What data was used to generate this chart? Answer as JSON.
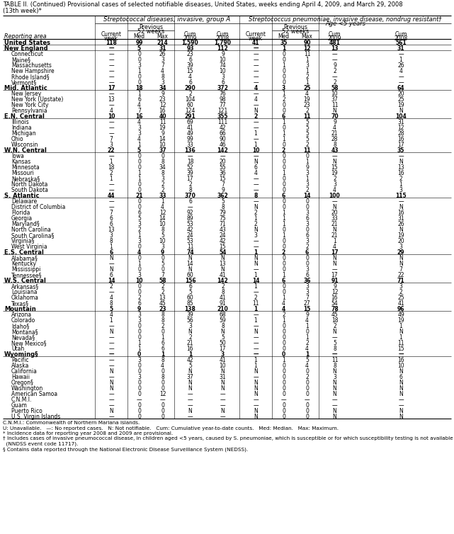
{
  "title_line1": "TABLE II. (Continued) Provisional cases of selected notifiable diseases, United States, weeks ending April 4, 2009, and March 29, 2008",
  "title_line2": "(13th week)*",
  "col_group1": "Streptococcal diseases, invasive, group A",
  "col_group2": "Streptococcus pneumoniae, invasive disease, nondrug resistant†\nAge <5 years",
  "reporting_area_label": "Reporting area",
  "rows": [
    [
      "United States",
      "118",
      "99",
      "214",
      "1,590",
      "1,790",
      "41",
      "35",
      "90",
      "481",
      "561"
    ],
    [
      "New England",
      "—",
      "5",
      "31",
      "93",
      "112",
      "—",
      "1",
      "12",
      "13",
      "31"
    ],
    [
      "Connecticut",
      "—",
      "0",
      "26",
      "23",
      "9",
      "—",
      "0",
      "11",
      "—",
      "—"
    ],
    [
      "Maine§",
      "—",
      "0",
      "3",
      "6",
      "10",
      "—",
      "0",
      "1",
      "—",
      "1"
    ],
    [
      "Massachusetts",
      "—",
      "3",
      "7",
      "39",
      "74",
      "—",
      "1",
      "3",
      "9",
      "26"
    ],
    [
      "New Hampshire",
      "—",
      "1",
      "4",
      "15",
      "10",
      "—",
      "0",
      "1",
      "2",
      "4"
    ],
    [
      "Rhode Island§",
      "—",
      "0",
      "8",
      "4",
      "3",
      "—",
      "0",
      "2",
      "—",
      "—"
    ],
    [
      "Vermont§",
      "—",
      "0",
      "3",
      "6",
      "6",
      "—",
      "0",
      "1",
      "2",
      "—"
    ],
    [
      "Mid. Atlantic",
      "17",
      "18",
      "34",
      "290",
      "372",
      "4",
      "3",
      "25",
      "58",
      "64"
    ],
    [
      "New Jersey",
      "—",
      "1",
      "9",
      "2",
      "76",
      "—",
      "1",
      "4",
      "10",
      "20"
    ],
    [
      "New York (Upstate)",
      "13",
      "6",
      "23",
      "104",
      "98",
      "4",
      "2",
      "19",
      "37",
      "25"
    ],
    [
      "New York City",
      "—",
      "4",
      "12",
      "60",
      "77",
      "—",
      "0",
      "23",
      "11",
      "19"
    ],
    [
      "Pennsylvania",
      "4",
      "7",
      "16",
      "124",
      "121",
      "N",
      "0",
      "2",
      "N",
      "N"
    ],
    [
      "E.N. Central",
      "10",
      "16",
      "40",
      "291",
      "355",
      "2",
      "6",
      "11",
      "70",
      "104"
    ],
    [
      "Illinois",
      "—",
      "4",
      "11",
      "69",
      "111",
      "—",
      "1",
      "5",
      "9",
      "31"
    ],
    [
      "Indiana",
      "—",
      "3",
      "19",
      "41",
      "42",
      "—",
      "0",
      "5",
      "4",
      "12"
    ],
    [
      "Michigan",
      "—",
      "3",
      "9",
      "49",
      "66",
      "1",
      "1",
      "5",
      "21",
      "28"
    ],
    [
      "Ohio",
      "7",
      "4",
      "14",
      "99",
      "90",
      "—",
      "1",
      "5",
      "28",
      "16"
    ],
    [
      "Wisconsin",
      "3",
      "1",
      "10",
      "33",
      "46",
      "1",
      "0",
      "2",
      "8",
      "17"
    ],
    [
      "W.N. Central",
      "22",
      "5",
      "37",
      "136",
      "142",
      "10",
      "2",
      "11",
      "43",
      "35"
    ],
    [
      "Iowa",
      "—",
      "0",
      "0",
      "—",
      "—",
      "—",
      "0",
      "0",
      "—",
      "—"
    ],
    [
      "Kansas",
      "1",
      "0",
      "8",
      "18",
      "20",
      "N",
      "0",
      "1",
      "N",
      "N"
    ],
    [
      "Minnesota",
      "18",
      "0",
      "34",
      "52",
      "55",
      "6",
      "0",
      "9",
      "15",
      "13"
    ],
    [
      "Missouri",
      "2",
      "1",
      "8",
      "39",
      "36",
      "4",
      "1",
      "3",
      "19",
      "16"
    ],
    [
      "Nebraska§",
      "1",
      "1",
      "3",
      "17",
      "15",
      "—",
      "0",
      "1",
      "2",
      "2"
    ],
    [
      "North Dakota",
      "—",
      "0",
      "2",
      "2",
      "7",
      "—",
      "0",
      "3",
      "3",
      "1"
    ],
    [
      "South Dakota",
      "—",
      "0",
      "2",
      "8",
      "9",
      "—",
      "0",
      "2",
      "4",
      "3"
    ],
    [
      "S. Atlantic",
      "44",
      "21",
      "33",
      "370",
      "362",
      "8",
      "6",
      "14",
      "100",
      "115"
    ],
    [
      "Delaware",
      "—",
      "0",
      "1",
      "6",
      "5",
      "—",
      "0",
      "0",
      "—",
      "—"
    ],
    [
      "District of Columbia",
      "—",
      "0",
      "4",
      "—",
      "8",
      "N",
      "0",
      "0",
      "N",
      "N"
    ],
    [
      "Florida",
      "7",
      "6",
      "12",
      "92",
      "79",
      "2",
      "1",
      "3",
      "20",
      "16"
    ],
    [
      "Georgia",
      "6",
      "5",
      "14",
      "89",
      "75",
      "1",
      "1",
      "6",
      "33",
      "31"
    ],
    [
      "Maryland§",
      "6",
      "3",
      "10",
      "53",
      "71",
      "2",
      "1",
      "3",
      "21",
      "26"
    ],
    [
      "North Carolina",
      "13",
      "2",
      "8",
      "42",
      "43",
      "N",
      "0",
      "0",
      "N",
      "N"
    ],
    [
      "South Carolina§",
      "3",
      "1",
      "5",
      "24",
      "24",
      "3",
      "1",
      "6",
      "21",
      "19"
    ],
    [
      "Virginia§",
      "8",
      "3",
      "10",
      "53",
      "42",
      "—",
      "0",
      "3",
      "1",
      "20"
    ],
    [
      "West Virginia",
      "1",
      "0",
      "3",
      "11",
      "15",
      "—",
      "0",
      "2",
      "4",
      "3"
    ],
    [
      "E.S. Central",
      "6",
      "4",
      "9",
      "74",
      "54",
      "1",
      "2",
      "6",
      "17",
      "29"
    ],
    [
      "Alabama§",
      "N",
      "0",
      "0",
      "N",
      "N",
      "N",
      "0",
      "0",
      "N",
      "N"
    ],
    [
      "Kentucky",
      "—",
      "1",
      "5",
      "14",
      "13",
      "N",
      "0",
      "0",
      "N",
      "N"
    ],
    [
      "Mississippi",
      "N",
      "0",
      "0",
      "N",
      "N",
      "—",
      "0",
      "3",
      "—",
      "7"
    ],
    [
      "Tennessee§",
      "6",
      "3",
      "7",
      "60",
      "41",
      "1",
      "1",
      "6",
      "17",
      "22"
    ],
    [
      "W.S. Central",
      "14",
      "10",
      "58",
      "156",
      "142",
      "14",
      "6",
      "36",
      "91",
      "71"
    ],
    [
      "Arkansas§",
      "2",
      "0",
      "2",
      "6",
      "2",
      "1",
      "0",
      "3",
      "9",
      "3"
    ],
    [
      "Louisiana",
      "—",
      "0",
      "2",
      "5",
      "8",
      "—",
      "0",
      "3",
      "12",
      "2"
    ],
    [
      "Oklahoma",
      "4",
      "2",
      "13",
      "60",
      "41",
      "2",
      "1",
      "7",
      "16",
      "25"
    ],
    [
      "Texas§",
      "8",
      "6",
      "45",
      "85",
      "91",
      "11",
      "4",
      "27",
      "54",
      "41"
    ],
    [
      "Mountain",
      "5",
      "9",
      "23",
      "138",
      "210",
      "1",
      "4",
      "15",
      "78",
      "96"
    ],
    [
      "Arizona",
      "4",
      "3",
      "8",
      "39",
      "68",
      "—",
      "2",
      "9",
      "45",
      "49"
    ],
    [
      "Colorado",
      "1",
      "3",
      "8",
      "56",
      "59",
      "1",
      "1",
      "4",
      "18",
      "19"
    ],
    [
      "Idaho§",
      "—",
      "0",
      "2",
      "3",
      "8",
      "—",
      "0",
      "1",
      "2",
      "1"
    ],
    [
      "Montana§",
      "N",
      "0",
      "0",
      "N",
      "N",
      "N",
      "0",
      "0",
      "N",
      "N"
    ],
    [
      "Nevada§",
      "—",
      "0",
      "1",
      "2",
      "5",
      "—",
      "0",
      "1",
      "—",
      "1"
    ],
    [
      "New Mexico§",
      "—",
      "1",
      "6",
      "21",
      "50",
      "—",
      "0",
      "2",
      "5",
      "11"
    ],
    [
      "Utah",
      "—",
      "1",
      "6",
      "16",
      "17",
      "—",
      "0",
      "4",
      "8",
      "15"
    ],
    [
      "Wyoming§",
      "—",
      "0",
      "1",
      "1",
      "3",
      "—",
      "0",
      "1",
      "—",
      "—"
    ],
    [
      "Pacific",
      "—",
      "3",
      "8",
      "42",
      "41",
      "1",
      "1",
      "5",
      "11",
      "16"
    ],
    [
      "Alaska",
      "—",
      "0",
      "4",
      "5",
      "10",
      "1",
      "0",
      "4",
      "8",
      "10"
    ],
    [
      "California",
      "N",
      "0",
      "0",
      "N",
      "N",
      "N",
      "0",
      "0",
      "N",
      "N"
    ],
    [
      "Hawaii",
      "—",
      "3",
      "8",
      "37",
      "31",
      "—",
      "0",
      "2",
      "3",
      "6"
    ],
    [
      "Oregon§",
      "N",
      "0",
      "0",
      "N",
      "N",
      "N",
      "0",
      "0",
      "N",
      "N"
    ],
    [
      "Washington",
      "N",
      "0",
      "0",
      "N",
      "N",
      "N",
      "0",
      "0",
      "N",
      "N"
    ],
    [
      "American Samoa",
      "—",
      "0",
      "12",
      "—",
      "—",
      "N",
      "0",
      "0",
      "N",
      "N"
    ],
    [
      "C.N.M.I.",
      "—",
      "—",
      "—",
      "—",
      "—",
      "—",
      "—",
      "—",
      "—",
      "—"
    ],
    [
      "Guam",
      "—",
      "0",
      "0",
      "—",
      "—",
      "—",
      "0",
      "0",
      "—",
      "—"
    ],
    [
      "Puerto Rico",
      "N",
      "0",
      "0",
      "N",
      "N",
      "N",
      "0",
      "0",
      "N",
      "N"
    ],
    [
      "U.S. Virgin Islands",
      "—",
      "0",
      "0",
      "—",
      "—",
      "N",
      "0",
      "0",
      "N",
      "N"
    ]
  ],
  "bold_row_indices": [
    0,
    1,
    8,
    13,
    19,
    27,
    37,
    42,
    47,
    55
  ],
  "footnotes": [
    "C.N.M.I.: Commonwealth of Northern Mariana Islands.",
    "U: Unavailable.   —: No reported cases.   N: Not notifiable.   Cum: Cumulative year-to-date counts.   Med: Median.   Max: Maximum.",
    "* Incidence data for reporting year 2008 and 2009 are provisional.",
    "† Includes cases of invasive pneumococcal disease, in children aged <5 years, caused by S. pneumoniae, which is susceptible or for which susceptibility testing is not available",
    "  (NNDSS event code 11717).",
    "§ Contains data reported through the National Electronic Disease Surveillance System (NEDSS)."
  ]
}
